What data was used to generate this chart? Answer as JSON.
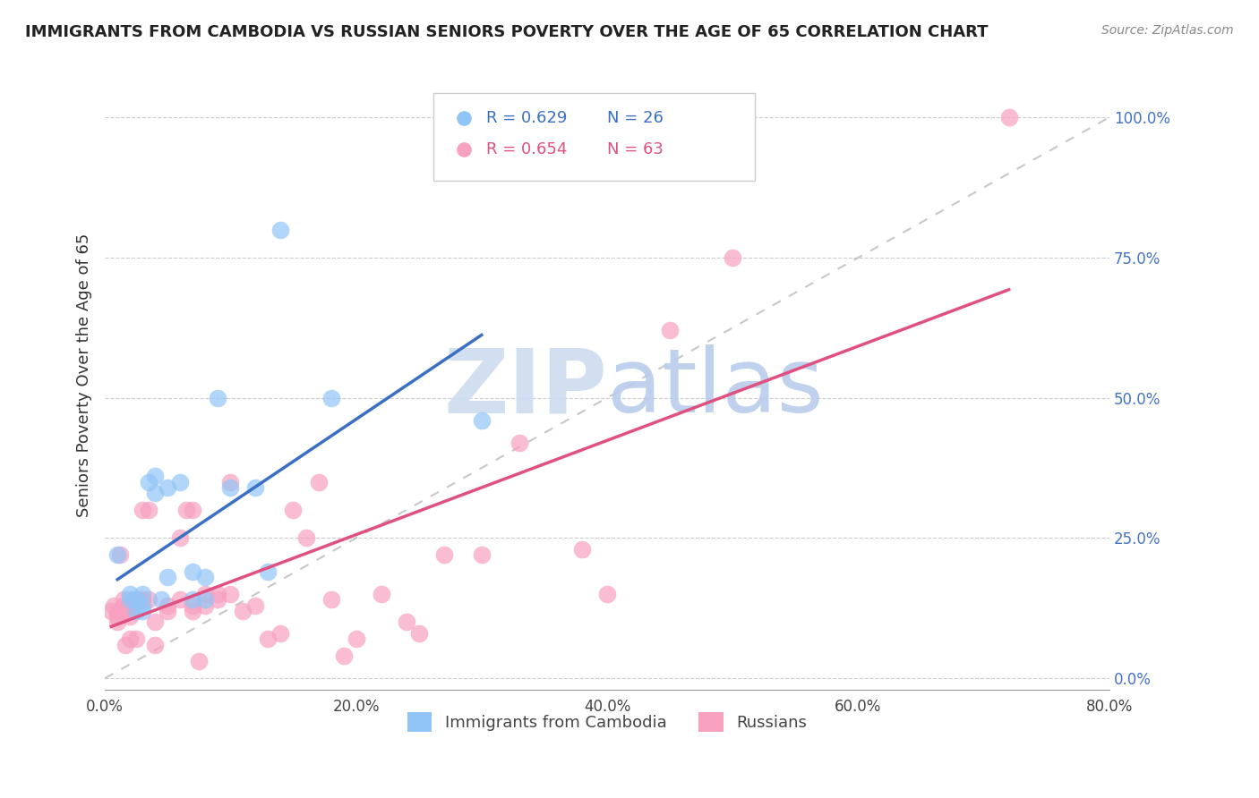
{
  "title": "IMMIGRANTS FROM CAMBODIA VS RUSSIAN SENIORS POVERTY OVER THE AGE OF 65 CORRELATION CHART",
  "source": "Source: ZipAtlas.com",
  "xlabel": "",
  "ylabel": "Seniors Poverty Over the Age of 65",
  "xlim": [
    0.0,
    0.8
  ],
  "ylim": [
    -0.02,
    1.1
  ],
  "xticks": [
    0.0,
    0.2,
    0.4,
    0.6,
    0.8
  ],
  "xtick_labels": [
    "0.0%",
    "20.0%",
    "40.0%",
    "60.0%",
    "80.0%"
  ],
  "yticks_right": [
    0.0,
    0.25,
    0.5,
    0.75,
    1.0
  ],
  "ytick_labels_right": [
    "0.0%",
    "25.0%",
    "50.0%",
    "75.0%",
    "100.0%"
  ],
  "legend_R_cambodia": "R = 0.629",
  "legend_N_cambodia": "N = 26",
  "legend_R_russians": "R = 0.654",
  "legend_N_russians": "N = 63",
  "color_cambodia": "#92c5f7",
  "color_russians": "#f7a0c0",
  "color_cambodia_line": "#3a6fc4",
  "color_russians_line": "#e05080",
  "color_ref_line": "#b0b0b0",
  "cambodia_x": [
    0.01,
    0.02,
    0.02,
    0.025,
    0.025,
    0.03,
    0.03,
    0.03,
    0.035,
    0.04,
    0.04,
    0.045,
    0.05,
    0.05,
    0.06,
    0.07,
    0.07,
    0.08,
    0.08,
    0.09,
    0.1,
    0.12,
    0.13,
    0.14,
    0.18,
    0.3
  ],
  "cambodia_y": [
    0.22,
    0.14,
    0.15,
    0.14,
    0.12,
    0.13,
    0.12,
    0.15,
    0.35,
    0.33,
    0.36,
    0.14,
    0.34,
    0.18,
    0.35,
    0.14,
    0.19,
    0.14,
    0.18,
    0.5,
    0.34,
    0.34,
    0.19,
    0.8,
    0.5,
    0.46
  ],
  "russians_x": [
    0.005,
    0.007,
    0.01,
    0.01,
    0.01,
    0.012,
    0.012,
    0.015,
    0.015,
    0.015,
    0.016,
    0.016,
    0.02,
    0.02,
    0.02,
    0.022,
    0.022,
    0.025,
    0.025,
    0.025,
    0.03,
    0.03,
    0.03,
    0.035,
    0.035,
    0.04,
    0.04,
    0.05,
    0.05,
    0.06,
    0.06,
    0.065,
    0.07,
    0.07,
    0.07,
    0.075,
    0.08,
    0.08,
    0.09,
    0.09,
    0.1,
    0.1,
    0.11,
    0.12,
    0.13,
    0.14,
    0.15,
    0.16,
    0.17,
    0.18,
    0.19,
    0.2,
    0.22,
    0.24,
    0.25,
    0.27,
    0.3,
    0.33,
    0.38,
    0.4,
    0.45,
    0.5,
    0.72
  ],
  "russians_y": [
    0.12,
    0.13,
    0.12,
    0.11,
    0.1,
    0.12,
    0.22,
    0.14,
    0.12,
    0.13,
    0.06,
    0.12,
    0.11,
    0.12,
    0.07,
    0.13,
    0.13,
    0.14,
    0.14,
    0.07,
    0.14,
    0.14,
    0.3,
    0.14,
    0.3,
    0.06,
    0.1,
    0.12,
    0.13,
    0.14,
    0.25,
    0.3,
    0.12,
    0.13,
    0.3,
    0.03,
    0.15,
    0.13,
    0.14,
    0.15,
    0.35,
    0.15,
    0.12,
    0.13,
    0.07,
    0.08,
    0.3,
    0.25,
    0.35,
    0.14,
    0.04,
    0.07,
    0.15,
    0.1,
    0.08,
    0.22,
    0.22,
    0.42,
    0.23,
    0.15,
    0.62,
    0.75,
    1.0
  ]
}
